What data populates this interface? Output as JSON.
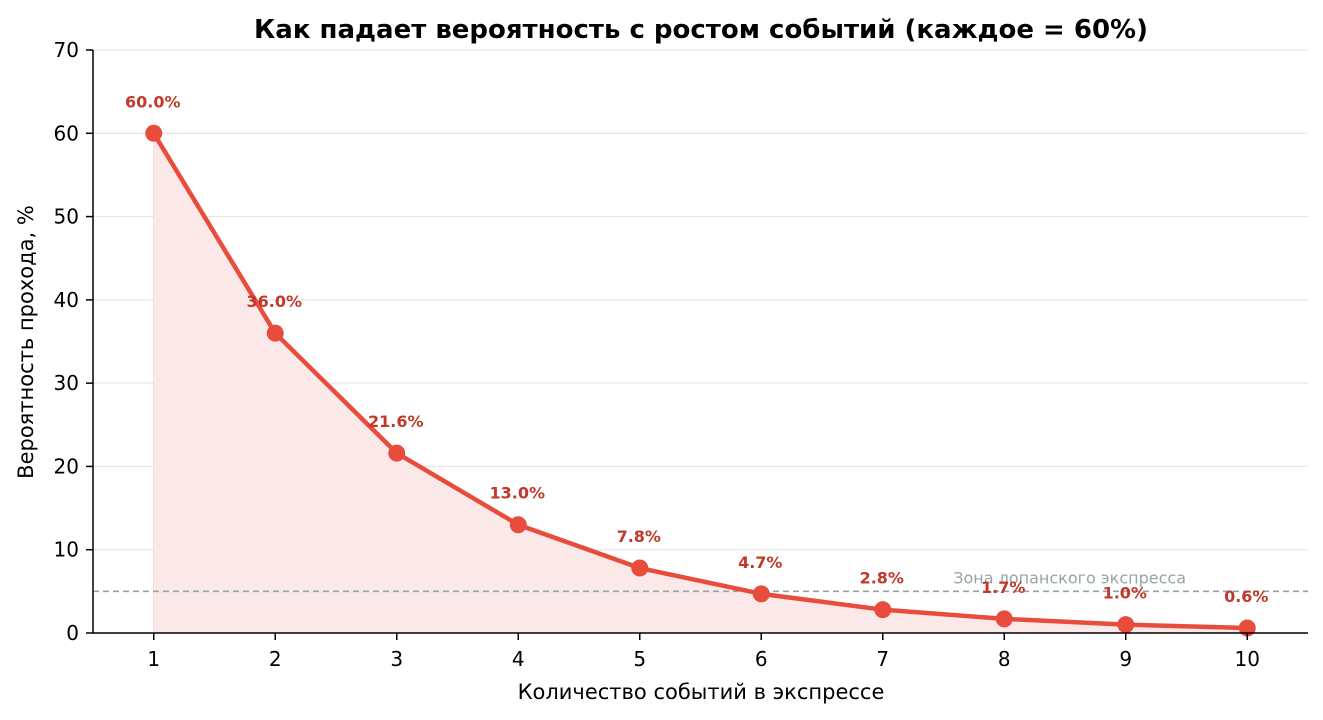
{
  "chart_data": {
    "type": "line",
    "title": "Как падает вероятность с ростом событий (каждое = 60%)",
    "xlabel": "Количество событий в экспрессе",
    "ylabel": "Вероятность прохода, %",
    "x": [
      1,
      2,
      3,
      4,
      5,
      6,
      7,
      8,
      9,
      10
    ],
    "y": [
      60.0,
      36.0,
      21.6,
      13.0,
      7.8,
      4.7,
      2.8,
      1.7,
      1.0,
      0.6
    ],
    "data_labels": [
      "60.0%",
      "36.0%",
      "21.6%",
      "13.0%",
      "7.8%",
      "4.7%",
      "2.8%",
      "1.7%",
      "1.0%",
      "0.6%"
    ],
    "xlim": [
      0.5,
      10.5
    ],
    "ylim": [
      0,
      70
    ],
    "yticks": [
      0,
      10,
      20,
      30,
      40,
      50,
      60,
      70
    ],
    "grid": "horizontal",
    "fill_under_line": true,
    "reference_line": {
      "y": 5,
      "label": "Зона лопанского экспресса",
      "style": "dashed"
    },
    "colors": {
      "line": "#e74c3c",
      "fill": "#fbe9e9",
      "data_label": "#c0392b",
      "reference": "#95a5a6",
      "grid": "#e6e6e6"
    }
  }
}
